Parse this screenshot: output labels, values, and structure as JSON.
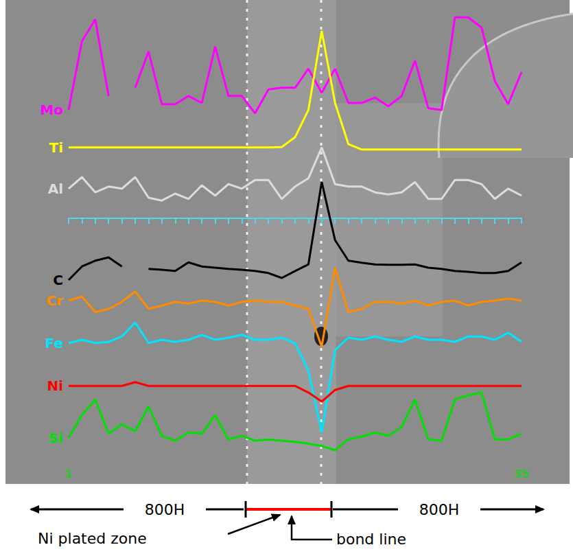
{
  "chart_data": {
    "type": "line",
    "x": [
      1,
      2,
      3,
      4,
      5,
      6,
      7,
      8,
      9,
      10,
      11,
      12,
      13,
      14,
      15,
      16,
      17,
      18,
      19,
      20,
      21,
      22,
      23,
      24,
      25,
      26,
      27,
      28,
      29,
      30,
      31,
      32,
      33,
      34,
      35
    ],
    "xlim": [
      1,
      35
    ],
    "xticks": [
      1,
      35
    ],
    "ylim": [
      -60,
      50
    ],
    "tick_labels": "x",
    "grid": false,
    "series": [
      {
        "name": "Mo",
        "color": "#ff00ff",
        "values": [
          26.3,
          43,
          48.3,
          29.7,
          null,
          31.7,
          40.5,
          27.7,
          27.7,
          29.7,
          28,
          41.7,
          29.7,
          29.7,
          25.5,
          31.3,
          31.7,
          31.7,
          36.3,
          30.5,
          36.3,
          28,
          28,
          29.3,
          27.2,
          29.7,
          38.3,
          26.7,
          26.3,
          48.8,
          48.8,
          46.3,
          33.3,
          27.7,
          35.5
        ]
      },
      {
        "name": "Ti",
        "color": "#ffff00",
        "values": [
          17.2,
          17.2,
          17.2,
          17.2,
          17.2,
          17.2,
          17.2,
          17.2,
          17.2,
          17.2,
          17.2,
          17.2,
          17.2,
          17.2,
          17.2,
          17.2,
          17.3,
          19.7,
          26.3,
          45.5,
          28,
          18,
          16.7,
          16.7,
          16.7,
          16.7,
          16.7,
          16.7,
          16.7,
          16.7,
          16.7,
          16.7,
          16.7,
          16.7,
          16.7
        ]
      },
      {
        "name": "Al",
        "color": "#dcdcdc",
        "values": [
          7.2,
          10,
          6.3,
          7.7,
          7.2,
          10,
          5,
          4.3,
          6,
          4.7,
          8,
          5.5,
          8.3,
          7.2,
          9.3,
          9.3,
          4.7,
          7.7,
          9.7,
          17.2,
          8.3,
          7.7,
          7.7,
          6.3,
          5.8,
          6.3,
          8.8,
          4.7,
          4.7,
          9.3,
          9.3,
          8.3,
          4.7,
          7.2,
          5.5
        ]
      },
      {
        "name": "C",
        "color": "#000000",
        "values": [
          -15,
          -11.7,
          -10.3,
          -9.5,
          -11.7,
          null,
          -12.3,
          -12.5,
          -12.8,
          -10.7,
          -11.7,
          -12,
          -12.3,
          -12.5,
          -12.8,
          -13.3,
          -14.5,
          -12.8,
          -11.2,
          8.8,
          -5.3,
          -10.3,
          -10.8,
          -11.2,
          -11.3,
          -11.3,
          -11.2,
          -12,
          -12.3,
          -12.8,
          -13,
          -13.3,
          -13.3,
          -12.8,
          -10.7
        ]
      },
      {
        "name": "Cr",
        "color": "#ff8c00",
        "values": [
          -20,
          -19,
          -22.8,
          -22,
          -20.3,
          -17.8,
          -22,
          -21.2,
          -20.3,
          -20.7,
          -20,
          -20.3,
          -21.2,
          -20.3,
          -20,
          -20.3,
          -20.3,
          -21.2,
          -22,
          -31.2,
          -12,
          -22.8,
          -22,
          -20.3,
          -20.3,
          -20.7,
          -20,
          -21.2,
          -20.3,
          -20,
          -21.2,
          -20.3,
          -20,
          -19.5,
          -20
        ]
      },
      {
        "name": "Fe",
        "color": "#00e5ff",
        "values": [
          -30.3,
          -29.5,
          -30.3,
          -30,
          -28.7,
          -25.3,
          -30.3,
          -29.5,
          -30,
          -29.5,
          -28.3,
          -29.5,
          -29,
          -28.3,
          -29.5,
          -29.5,
          -29,
          -30.3,
          -37,
          -52,
          -32,
          -29,
          -29.5,
          -28.7,
          -29.5,
          -30,
          -28.7,
          -29.5,
          -29.5,
          -30,
          -28.7,
          -28.7,
          -29.5,
          -27.8,
          -30
        ]
      },
      {
        "name": "Ni",
        "color": "#ff0000",
        "values": [
          -40.7,
          -40.7,
          -40.7,
          -40.7,
          -40.7,
          -39.8,
          -40.7,
          -40.7,
          -40.7,
          -40.7,
          -40.7,
          -40.7,
          -40.7,
          -40.7,
          -40.7,
          -40.7,
          -40.7,
          -40.7,
          -42.3,
          -44.5,
          -41.7,
          -40.7,
          -40.7,
          -40.7,
          -40.7,
          -40.7,
          -40.7,
          -40.7,
          -40.7,
          -40.7,
          -40.7,
          -40.7,
          -40.7,
          -40.7,
          -40.7
        ]
      },
      {
        "name": "Si",
        "color": "#00e000",
        "values": [
          -53.3,
          -47.8,
          -44,
          -52.3,
          -50,
          -51.7,
          -45.7,
          -52.8,
          -54,
          -52,
          -52.3,
          -47.8,
          -53.7,
          -52.8,
          -54,
          -53.7,
          -54,
          -54.3,
          -54.7,
          -55.3,
          -56.3,
          -53.7,
          -53,
          -52,
          -52.8,
          -50.7,
          -44,
          -53.7,
          -54,
          -44,
          -43,
          -42.3,
          -53.7,
          -53.7,
          -52.3
        ]
      }
    ],
    "annotations": [
      {
        "text": "800H"
      },
      {
        "text": "800H"
      },
      {
        "text": "Ni plated zone"
      },
      {
        "text": "bond line"
      }
    ]
  }
}
